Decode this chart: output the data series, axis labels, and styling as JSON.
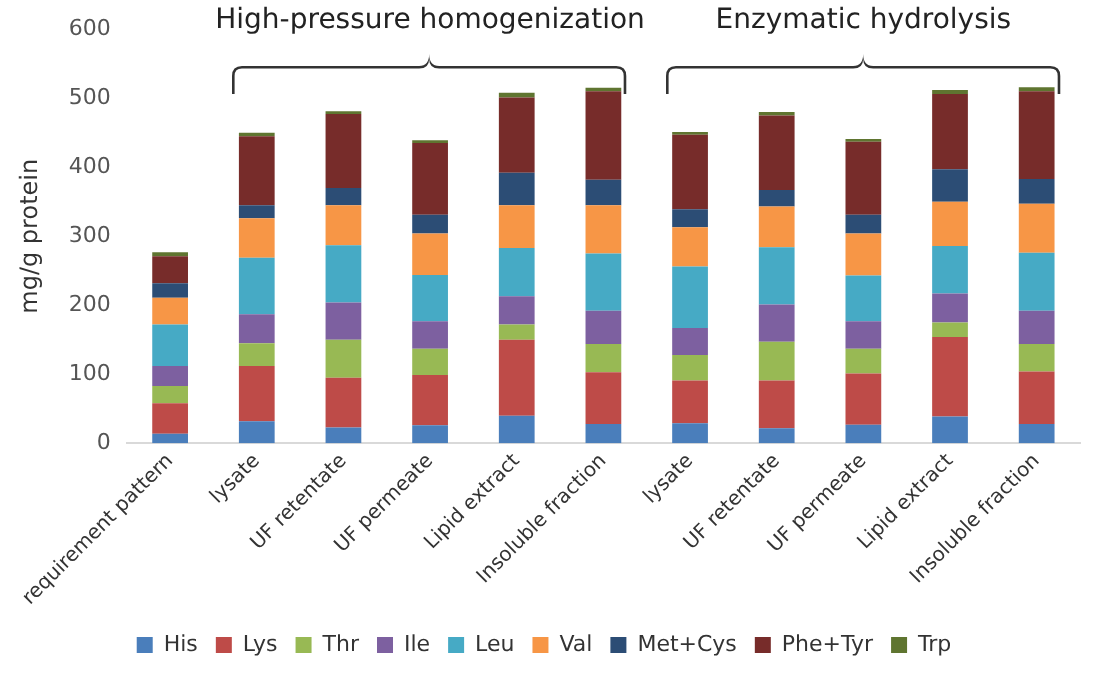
{
  "chart_data": {
    "type": "bar",
    "stacked": true,
    "ylabel": "mg/g protein",
    "categories": [
      "requirement pattern",
      "lysate",
      "UF retentate",
      "UF permeate",
      "Lipid extract",
      "Insoluble fraction",
      "lysate",
      "UF retentate",
      "UF permeate",
      "Lipid extract",
      "Insoluble fraction"
    ],
    "series": [
      {
        "name": "His",
        "color": "#4a7ebb",
        "values": [
          14,
          32,
          23,
          26,
          40,
          28,
          29,
          22,
          27,
          39,
          28
        ]
      },
      {
        "name": "Lys",
        "color": "#be4b48",
        "values": [
          44,
          80,
          72,
          73,
          110,
          75,
          62,
          69,
          74,
          115,
          76
        ]
      },
      {
        "name": "Thr",
        "color": "#98b954",
        "values": [
          25,
          33,
          55,
          38,
          22,
          41,
          37,
          56,
          36,
          21,
          40
        ]
      },
      {
        "name": "Ile",
        "color": "#7d60a0",
        "values": [
          29,
          42,
          54,
          40,
          41,
          48,
          39,
          54,
          40,
          42,
          48
        ]
      },
      {
        "name": "Leu",
        "color": "#46aac5",
        "values": [
          60,
          82,
          83,
          67,
          70,
          83,
          89,
          83,
          66,
          69,
          84
        ]
      },
      {
        "name": "Val",
        "color": "#f79646",
        "values": [
          39,
          57,
          58,
          60,
          62,
          70,
          57,
          59,
          61,
          64,
          71
        ]
      },
      {
        "name": "Met+Cys",
        "color": "#2c4d75",
        "values": [
          21,
          19,
          25,
          27,
          47,
          37,
          26,
          24,
          27,
          47,
          36
        ]
      },
      {
        "name": "Phe+Tyr",
        "color": "#772c2a",
        "values": [
          39,
          100,
          107,
          104,
          109,
          128,
          108,
          108,
          106,
          109,
          127
        ]
      },
      {
        "name": "Trp",
        "color": "#5f7530",
        "values": [
          6,
          5,
          4,
          4,
          7,
          5,
          4,
          5,
          4,
          6,
          6
        ]
      }
    ],
    "ylim": [
      0,
      600
    ],
    "yticks": [
      0,
      100,
      200,
      300,
      400,
      500,
      600
    ],
    "grid": false,
    "legend": "bottom",
    "annotations": [
      "High-pressure homogenization",
      "Enzymatic hydrolysis"
    ]
  }
}
